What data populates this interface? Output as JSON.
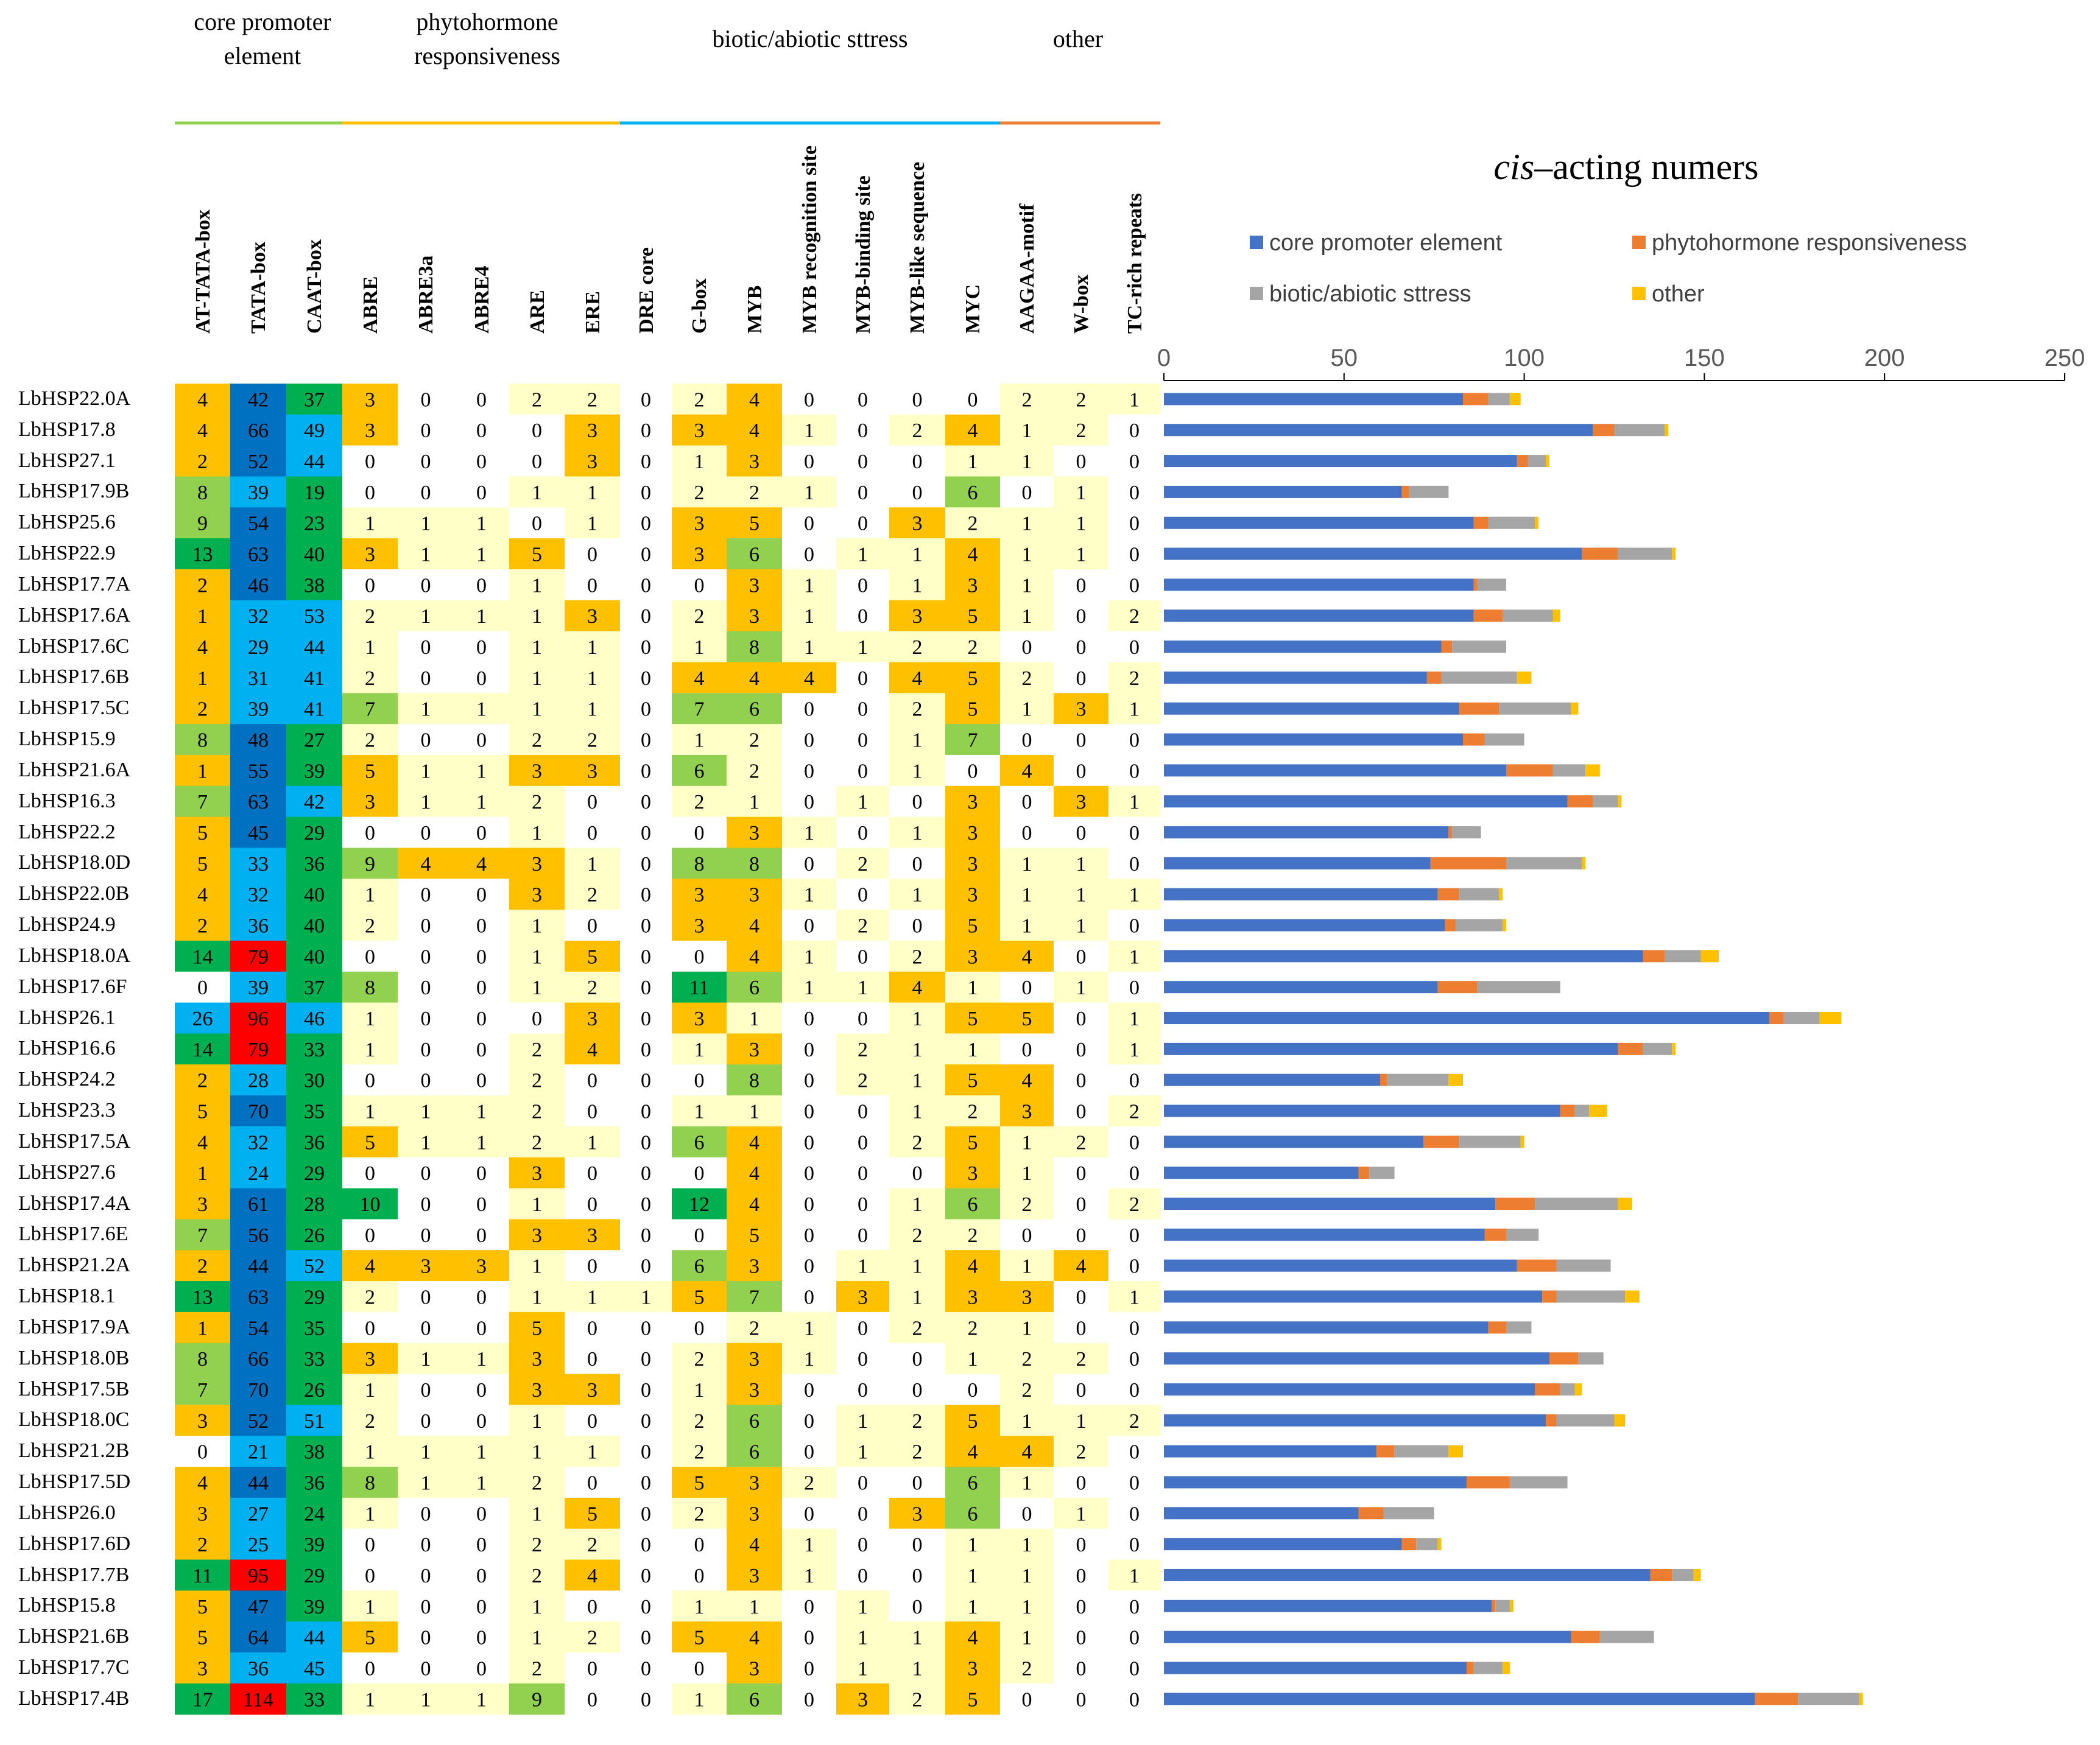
{
  "header": {
    "categories": [
      {
        "label_line1": "core promoter",
        "label_line2": "element",
        "color": "#92D050"
      },
      {
        "label_line1": "phytohormone",
        "label_line2": "responsiveness",
        "color": "#FFC000"
      },
      {
        "label_line1": "biotic/abiotic sttress",
        "label_line2": "",
        "color": "#00B0F0"
      },
      {
        "label_line1": "other",
        "label_line2": "",
        "color": "#ED7D31"
      }
    ],
    "columns": [
      "AT-TATA-box",
      "TATA-box",
      "CAAT-box",
      "ABRE",
      "ABRE3a",
      "ABRE4",
      "ARE",
      "ERE",
      "DRE core",
      "G-box",
      "MYB",
      "MYB recognition site",
      "MYB-binding site",
      "MYB-like sequence",
      "MYC",
      "AAGAA-motif",
      "W-box",
      "TC-rich repeats"
    ]
  },
  "heatmap": {
    "colors": {
      "zero": "#FFFFFF",
      "light": "#FFFFC8",
      "orange": "#FFC000",
      "lightgreen": "#92D050",
      "green": "#00B050",
      "lightblue": "#00B0F0",
      "blue": "#0070C0",
      "red": "#FF0000"
    },
    "rows": [
      {
        "gene": "LbHSP22.0A",
        "values": [
          4,
          42,
          37,
          3,
          0,
          0,
          2,
          2,
          0,
          2,
          4,
          0,
          0,
          0,
          0,
          2,
          2,
          1
        ]
      },
      {
        "gene": "LbHSP17.8",
        "values": [
          4,
          66,
          49,
          3,
          0,
          0,
          0,
          3,
          0,
          3,
          4,
          1,
          0,
          2,
          4,
          1,
          2,
          0
        ]
      },
      {
        "gene": "LbHSP27.1",
        "values": [
          2,
          52,
          44,
          0,
          0,
          0,
          0,
          3,
          0,
          1,
          3,
          0,
          0,
          0,
          1,
          1,
          0,
          0
        ]
      },
      {
        "gene": "LbHSP17.9B",
        "values": [
          8,
          39,
          19,
          0,
          0,
          0,
          1,
          1,
          0,
          2,
          2,
          1,
          0,
          0,
          6,
          0,
          1,
          0
        ]
      },
      {
        "gene": "LbHSP25.6",
        "values": [
          9,
          54,
          23,
          1,
          1,
          1,
          0,
          1,
          0,
          3,
          5,
          0,
          0,
          3,
          2,
          1,
          1,
          0
        ]
      },
      {
        "gene": "LbHSP22.9",
        "values": [
          13,
          63,
          40,
          3,
          1,
          1,
          5,
          0,
          0,
          3,
          6,
          0,
          1,
          1,
          4,
          1,
          1,
          0
        ]
      },
      {
        "gene": "LbHSP17.7A",
        "values": [
          2,
          46,
          38,
          0,
          0,
          0,
          1,
          0,
          0,
          0,
          3,
          1,
          0,
          1,
          3,
          1,
          0,
          0
        ]
      },
      {
        "gene": "LbHSP17.6A",
        "values": [
          1,
          32,
          53,
          2,
          1,
          1,
          1,
          3,
          0,
          2,
          3,
          1,
          0,
          3,
          5,
          1,
          0,
          2
        ]
      },
      {
        "gene": "LbHSP17.6C",
        "values": [
          4,
          29,
          44,
          1,
          0,
          0,
          1,
          1,
          0,
          1,
          8,
          1,
          1,
          2,
          2,
          0,
          0,
          0
        ]
      },
      {
        "gene": "LbHSP17.6B",
        "values": [
          1,
          31,
          41,
          2,
          0,
          0,
          1,
          1,
          0,
          4,
          4,
          4,
          0,
          4,
          5,
          2,
          0,
          2
        ]
      },
      {
        "gene": "LbHSP17.5C",
        "values": [
          2,
          39,
          41,
          7,
          1,
          1,
          1,
          1,
          0,
          7,
          6,
          0,
          0,
          2,
          5,
          1,
          3,
          1
        ]
      },
      {
        "gene": "LbHSP15.9",
        "values": [
          8,
          48,
          27,
          2,
          0,
          0,
          2,
          2,
          0,
          1,
          2,
          0,
          0,
          1,
          7,
          0,
          0,
          0
        ]
      },
      {
        "gene": "LbHSP21.6A",
        "values": [
          1,
          55,
          39,
          5,
          1,
          1,
          3,
          3,
          0,
          6,
          2,
          0,
          0,
          1,
          0,
          4,
          0,
          0
        ]
      },
      {
        "gene": "LbHSP16.3",
        "values": [
          7,
          63,
          42,
          3,
          1,
          1,
          2,
          0,
          0,
          2,
          1,
          0,
          1,
          0,
          3,
          0,
          3,
          1
        ]
      },
      {
        "gene": "LbHSP22.2",
        "values": [
          5,
          45,
          29,
          0,
          0,
          0,
          1,
          0,
          0,
          0,
          3,
          1,
          0,
          1,
          3,
          0,
          0,
          0
        ]
      },
      {
        "gene": "LbHSP18.0D",
        "values": [
          5,
          33,
          36,
          9,
          4,
          4,
          3,
          1,
          0,
          8,
          8,
          0,
          2,
          0,
          3,
          1,
          1,
          0
        ]
      },
      {
        "gene": "LbHSP22.0B",
        "values": [
          4,
          32,
          40,
          1,
          0,
          0,
          3,
          2,
          0,
          3,
          3,
          1,
          0,
          1,
          3,
          1,
          1,
          1
        ]
      },
      {
        "gene": "LbHSP24.9",
        "values": [
          2,
          36,
          40,
          2,
          0,
          0,
          1,
          0,
          0,
          3,
          4,
          0,
          2,
          0,
          5,
          1,
          1,
          0
        ]
      },
      {
        "gene": "LbHSP18.0A",
        "values": [
          14,
          79,
          40,
          0,
          0,
          0,
          1,
          5,
          0,
          0,
          4,
          1,
          0,
          2,
          3,
          4,
          0,
          1
        ]
      },
      {
        "gene": "LbHSP17.6F",
        "values": [
          0,
          39,
          37,
          8,
          0,
          0,
          1,
          2,
          0,
          11,
          6,
          1,
          1,
          4,
          1,
          0,
          1,
          0
        ]
      },
      {
        "gene": "LbHSP26.1",
        "values": [
          26,
          96,
          46,
          1,
          0,
          0,
          0,
          3,
          0,
          3,
          1,
          0,
          0,
          1,
          5,
          5,
          0,
          1
        ]
      },
      {
        "gene": "LbHSP16.6",
        "values": [
          14,
          79,
          33,
          1,
          0,
          0,
          2,
          4,
          0,
          1,
          3,
          0,
          2,
          1,
          1,
          0,
          0,
          1
        ]
      },
      {
        "gene": "LbHSP24.2",
        "values": [
          2,
          28,
          30,
          0,
          0,
          0,
          2,
          0,
          0,
          0,
          8,
          0,
          2,
          1,
          5,
          4,
          0,
          0
        ]
      },
      {
        "gene": "LbHSP23.3",
        "values": [
          5,
          70,
          35,
          1,
          1,
          1,
          2,
          0,
          0,
          1,
          1,
          0,
          0,
          1,
          2,
          3,
          0,
          2
        ]
      },
      {
        "gene": "LbHSP17.5A",
        "values": [
          4,
          32,
          36,
          5,
          1,
          1,
          2,
          1,
          0,
          6,
          4,
          0,
          0,
          2,
          5,
          1,
          2,
          0
        ]
      },
      {
        "gene": "LbHSP27.6",
        "values": [
          1,
          24,
          29,
          0,
          0,
          0,
          3,
          0,
          0,
          0,
          4,
          0,
          0,
          0,
          3,
          1,
          0,
          0
        ]
      },
      {
        "gene": "LbHSP17.4A",
        "values": [
          3,
          61,
          28,
          10,
          0,
          0,
          1,
          0,
          0,
          12,
          4,
          0,
          0,
          1,
          6,
          2,
          0,
          2
        ]
      },
      {
        "gene": "LbHSP17.6E",
        "values": [
          7,
          56,
          26,
          0,
          0,
          0,
          3,
          3,
          0,
          0,
          5,
          0,
          0,
          2,
          2,
          0,
          0,
          0
        ]
      },
      {
        "gene": "LbHSP21.2A",
        "values": [
          2,
          44,
          52,
          4,
          3,
          3,
          1,
          0,
          0,
          6,
          3,
          0,
          1,
          1,
          4,
          1,
          4,
          0
        ]
      },
      {
        "gene": "LbHSP18.1",
        "values": [
          13,
          63,
          29,
          2,
          0,
          0,
          1,
          1,
          1,
          5,
          7,
          0,
          3,
          1,
          3,
          3,
          0,
          1
        ]
      },
      {
        "gene": "LbHSP17.9A",
        "values": [
          1,
          54,
          35,
          0,
          0,
          0,
          5,
          0,
          0,
          0,
          2,
          1,
          0,
          2,
          2,
          1,
          0,
          0
        ]
      },
      {
        "gene": "LbHSP18.0B",
        "values": [
          8,
          66,
          33,
          3,
          1,
          1,
          3,
          0,
          0,
          2,
          3,
          1,
          0,
          0,
          1,
          2,
          2,
          0
        ]
      },
      {
        "gene": "LbHSP17.5B",
        "values": [
          7,
          70,
          26,
          1,
          0,
          0,
          3,
          3,
          0,
          1,
          3,
          0,
          0,
          0,
          0,
          2,
          0,
          0
        ]
      },
      {
        "gene": "LbHSP18.0C",
        "values": [
          3,
          52,
          51,
          2,
          0,
          0,
          1,
          0,
          0,
          2,
          6,
          0,
          1,
          2,
          5,
          1,
          1,
          2
        ]
      },
      {
        "gene": "LbHSP21.2B",
        "values": [
          0,
          21,
          38,
          1,
          1,
          1,
          1,
          1,
          0,
          2,
          6,
          0,
          1,
          2,
          4,
          4,
          2,
          0
        ]
      },
      {
        "gene": "LbHSP17.5D",
        "values": [
          4,
          44,
          36,
          8,
          1,
          1,
          2,
          0,
          0,
          5,
          3,
          2,
          0,
          0,
          6,
          1,
          0,
          0
        ]
      },
      {
        "gene": "LbHSP26.0",
        "values": [
          3,
          27,
          24,
          1,
          0,
          0,
          1,
          5,
          0,
          2,
          3,
          0,
          0,
          3,
          6,
          0,
          1,
          0
        ]
      },
      {
        "gene": "LbHSP17.6D",
        "values": [
          2,
          25,
          39,
          0,
          0,
          0,
          2,
          2,
          0,
          0,
          4,
          1,
          0,
          0,
          1,
          1,
          0,
          0
        ]
      },
      {
        "gene": "LbHSP17.7B",
        "values": [
          11,
          95,
          29,
          0,
          0,
          0,
          2,
          4,
          0,
          0,
          3,
          1,
          0,
          0,
          1,
          1,
          0,
          1
        ]
      },
      {
        "gene": "LbHSP15.8",
        "values": [
          5,
          47,
          39,
          1,
          0,
          0,
          1,
          0,
          0,
          1,
          1,
          0,
          1,
          0,
          1,
          1,
          0,
          0
        ]
      },
      {
        "gene": "LbHSP21.6B",
        "values": [
          5,
          64,
          44,
          5,
          0,
          0,
          1,
          2,
          0,
          5,
          4,
          0,
          1,
          1,
          4,
          1,
          0,
          0
        ]
      },
      {
        "gene": "LbHSP17.7C",
        "values": [
          3,
          36,
          45,
          0,
          0,
          0,
          2,
          0,
          0,
          0,
          3,
          0,
          1,
          1,
          3,
          2,
          0,
          0
        ]
      },
      {
        "gene": "LbHSP17.4B",
        "values": [
          17,
          114,
          33,
          1,
          1,
          1,
          9,
          0,
          0,
          1,
          6,
          0,
          3,
          2,
          5,
          0,
          0,
          0
        ]
      }
    ]
  },
  "chart_data": {
    "type": "bar",
    "orientation": "horizontal",
    "stacked": true,
    "title_italic": "cis",
    "title_rest": "–acting numers",
    "xlim": [
      0,
      250
    ],
    "xticks": [
      0,
      50,
      100,
      150,
      200,
      250
    ],
    "xtick_labels": [
      "0",
      "50",
      "100",
      "150",
      "200",
      "250"
    ],
    "axis_position": "top",
    "legend_position": "top",
    "categories": [
      "LbHSP22.0A",
      "LbHSP17.8",
      "LbHSP27.1",
      "LbHSP17.9B",
      "LbHSP25.6",
      "LbHSP22.9",
      "LbHSP17.7A",
      "LbHSP17.6A",
      "LbHSP17.6C",
      "LbHSP17.6B",
      "LbHSP17.5C",
      "LbHSP15.9",
      "LbHSP21.6A",
      "LbHSP16.3",
      "LbHSP22.2",
      "LbHSP18.0D",
      "LbHSP22.0B",
      "LbHSP24.9",
      "LbHSP18.0A",
      "LbHSP17.6F",
      "LbHSP26.1",
      "LbHSP16.6",
      "LbHSP24.2",
      "LbHSP23.3",
      "LbHSP17.5A",
      "LbHSP27.6",
      "LbHSP17.4A",
      "LbHSP17.6E",
      "LbHSP21.2A",
      "LbHSP18.1",
      "LbHSP17.9A",
      "LbHSP18.0B",
      "LbHSP17.5B",
      "LbHSP18.0C",
      "LbHSP21.2B",
      "LbHSP17.5D",
      "LbHSP26.0",
      "LbHSP17.6D",
      "LbHSP17.7B",
      "LbHSP15.8",
      "LbHSP21.6B",
      "LbHSP17.7C",
      "LbHSP17.4B"
    ],
    "series": [
      {
        "name": "core promoter element",
        "color": "#4472C4",
        "values": [
          83,
          119,
          98,
          66,
          86,
          116,
          86,
          86,
          77,
          73,
          82,
          83,
          95,
          112,
          79,
          74,
          76,
          78,
          133,
          76,
          168,
          126,
          60,
          110,
          72,
          54,
          92,
          89,
          98,
          105,
          90,
          107,
          103,
          106,
          59,
          84,
          54,
          66,
          135,
          91,
          113,
          84,
          164
        ]
      },
      {
        "name": "phytohormone responsiveness",
        "color": "#ED7D31",
        "values": [
          7,
          6,
          3,
          2,
          4,
          10,
          1,
          8,
          3,
          4,
          11,
          6,
          13,
          7,
          1,
          21,
          6,
          3,
          6,
          11,
          4,
          7,
          2,
          4,
          10,
          3,
          11,
          6,
          11,
          4,
          5,
          8,
          7,
          3,
          5,
          12,
          7,
          4,
          6,
          1,
          8,
          2,
          12
        ]
      },
      {
        "name": "biotic/abiotic sttress",
        "color": "#A5A5A5",
        "values": [
          6,
          14,
          5,
          11,
          13,
          15,
          8,
          14,
          15,
          21,
          20,
          11,
          9,
          7,
          8,
          21,
          11,
          13,
          10,
          23,
          10,
          8,
          17,
          4,
          17,
          7,
          23,
          9,
          15,
          19,
          7,
          7,
          4,
          16,
          15,
          16,
          14,
          6,
          6,
          4,
          15,
          8,
          17
        ]
      },
      {
        "name": "other",
        "color": "#FFC000",
        "values": [
          3,
          1,
          1,
          0,
          1,
          1,
          0,
          2,
          0,
          4,
          2,
          0,
          4,
          1,
          0,
          1,
          1,
          1,
          5,
          0,
          6,
          1,
          4,
          5,
          1,
          0,
          4,
          0,
          0,
          4,
          0,
          0,
          2,
          3,
          4,
          0,
          0,
          1,
          2,
          1,
          0,
          2,
          1
        ]
      }
    ]
  }
}
